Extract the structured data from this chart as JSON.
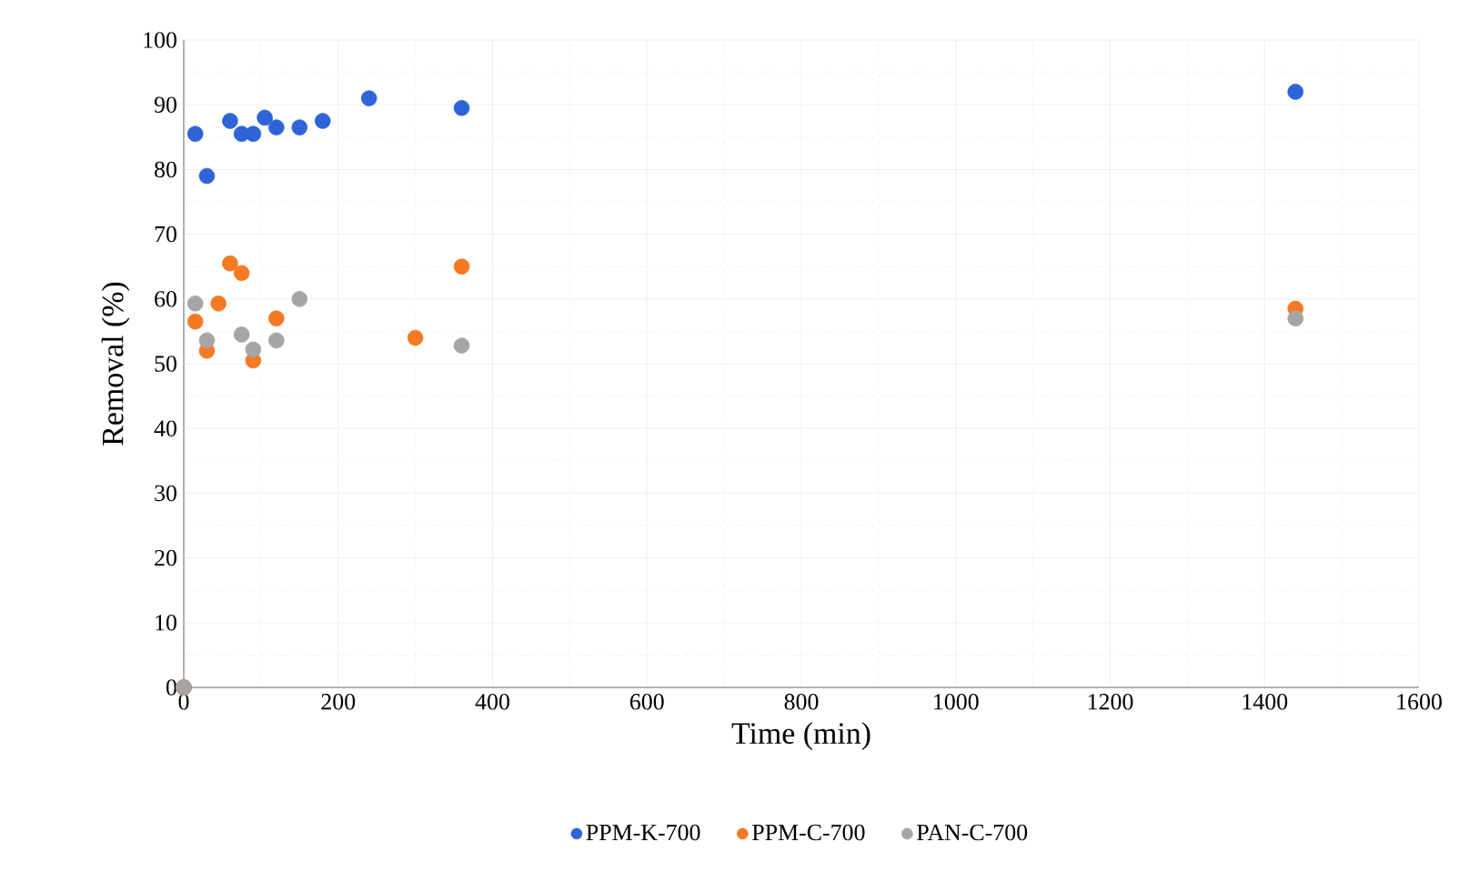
{
  "chart_data": {
    "type": "scatter",
    "xlabel": "Time (min)",
    "ylabel": "Removal (%)",
    "xlim": [
      0,
      1600
    ],
    "xticks": [
      0,
      200,
      400,
      600,
      800,
      1000,
      1200,
      1400,
      1600
    ],
    "ylim": [
      0,
      100
    ],
    "yticks": [
      0,
      10,
      20,
      30,
      40,
      50,
      60,
      70,
      80,
      90,
      100
    ],
    "grid": true,
    "legend": "bottom",
    "marker": "circle",
    "series": [
      {
        "name": "PPM-K-700",
        "color": "#2e64d8",
        "x": [
          0,
          15,
          30,
          60,
          75,
          90,
          105,
          120,
          150,
          180,
          240,
          360,
          1440
        ],
        "values": [
          0,
          85.5,
          79,
          87.5,
          85.5,
          85.5,
          88,
          86.5,
          86.5,
          87.5,
          91,
          89.5,
          92
        ]
      },
      {
        "name": "PPM-C-700",
        "color": "#f47a24",
        "x": [
          0,
          15,
          30,
          45,
          60,
          75,
          90,
          120,
          300,
          360,
          1440
        ],
        "values": [
          0,
          56.5,
          52,
          59.3,
          65.5,
          64,
          50.5,
          57,
          54,
          65,
          58.5
        ]
      },
      {
        "name": "PAN-C-700",
        "color": "#a5a5a5",
        "x": [
          0,
          15,
          30,
          75,
          90,
          120,
          150,
          360,
          1440
        ],
        "values": [
          0,
          59.3,
          53.6,
          54.5,
          52.2,
          53.6,
          60,
          52.8,
          57
        ]
      }
    ]
  }
}
